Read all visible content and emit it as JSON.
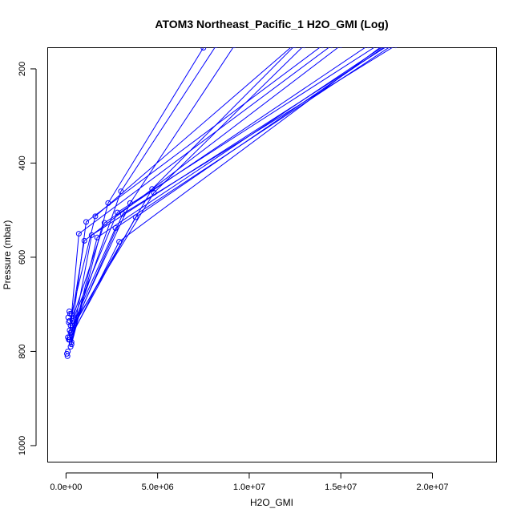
{
  "chart_data": {
    "type": "line",
    "title": "ATOM3 Northeast_Pacific_1 H2O_GMI (Log)",
    "xlabel": "H2O_GMI",
    "ylabel": "Pressure (mbar)",
    "xlim": [
      -1000000,
      23500000
    ],
    "ylim": [
      1035,
      155
    ],
    "y_inverted": true,
    "x_ticks": [
      0,
      5000000,
      10000000,
      15000000,
      20000000
    ],
    "x_tick_labels": [
      "0.0e+00",
      "5.0e+06",
      "1.0e+07",
      "1.5e+07",
      "2.0e+07"
    ],
    "y_ticks": [
      200,
      400,
      600,
      800,
      1000
    ],
    "y_tick_labels": [
      "200",
      "400",
      "600",
      "800",
      "1000"
    ],
    "grid": false,
    "color": "#0000ff",
    "series": [
      {
        "x": [
          300000,
          2300000,
          7500000
        ],
        "y": [
          785,
          485,
          155
        ]
      },
      {
        "x": [
          200000,
          3000000,
          8200000
        ],
        "y": [
          770,
          460,
          150
        ]
      },
      {
        "x": [
          250000,
          3500000,
          9200000
        ],
        "y": [
          760,
          485,
          150
        ]
      },
      {
        "x": [
          350000,
          4700000,
          12500000
        ],
        "y": [
          750,
          455,
          150
        ]
      },
      {
        "x": [
          450000,
          4800000,
          13000000
        ],
        "y": [
          740,
          463,
          150
        ]
      },
      {
        "x": [
          300000,
          1600000,
          12400000
        ],
        "y": [
          720,
          513,
          150
        ]
      },
      {
        "x": [
          400000,
          1100000,
          14000000
        ],
        "y": [
          730,
          525,
          150
        ]
      },
      {
        "x": [
          250000,
          700000,
          14500000
        ],
        "y": [
          745,
          550,
          150
        ]
      },
      {
        "x": [
          200000,
          1000000,
          15000000
        ],
        "y": [
          755,
          565,
          150
        ]
      },
      {
        "x": [
          350000,
          2800000,
          17000000
        ],
        "y": [
          735,
          505,
          150
        ]
      },
      {
        "x": [
          300000,
          3800000,
          17500000
        ],
        "y": [
          765,
          515,
          150
        ]
      },
      {
        "x": [
          400000,
          2100000,
          16500000
        ],
        "y": [
          725,
          527,
          150
        ]
      },
      {
        "x": [
          300000,
          1400000,
          17600000
        ],
        "y": [
          780,
          553,
          150
        ]
      },
      {
        "x": [
          250000,
          1700000,
          17400000
        ],
        "y": [
          790,
          558,
          150
        ]
      },
      {
        "x": [
          200000,
          2900000,
          17300000
        ],
        "y": [
          775,
          567,
          150
        ]
      },
      {
        "x": [
          300000,
          3100000,
          18000000
        ],
        "y": [
          760,
          508,
          150
        ]
      },
      {
        "x": [
          350000,
          2700000,
          17800000
        ],
        "y": [
          745,
          538,
          150
        ]
      }
    ],
    "low_points": [
      {
        "x": 100000,
        "y": 800
      },
      {
        "x": 50000,
        "y": 805
      },
      {
        "x": 80000,
        "y": 810
      },
      {
        "x": 150000,
        "y": 775
      },
      {
        "x": 100000,
        "y": 770
      },
      {
        "x": 200000,
        "y": 735
      },
      {
        "x": 180000,
        "y": 715
      },
      {
        "x": 220000,
        "y": 720
      },
      {
        "x": 150000,
        "y": 738
      },
      {
        "x": 120000,
        "y": 728
      }
    ]
  }
}
